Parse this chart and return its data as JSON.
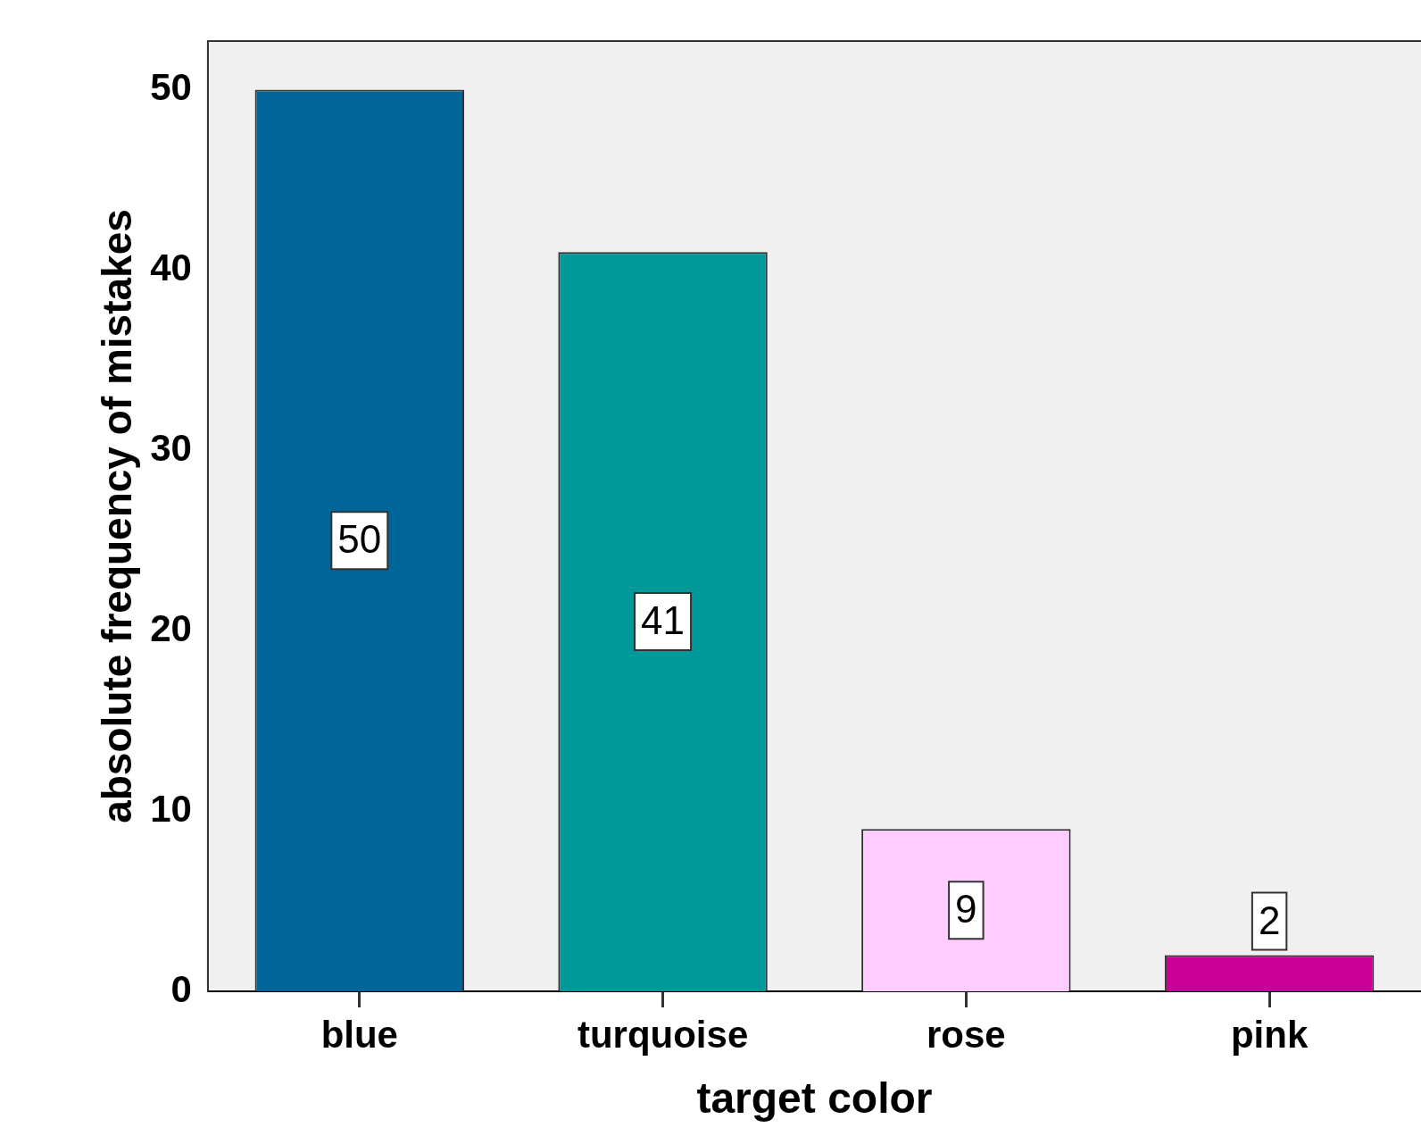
{
  "chart_data": {
    "type": "bar",
    "xlabel": "target color",
    "ylabel": "absolute frequency of mistakes",
    "categories": [
      "blue",
      "turquoise",
      "rose",
      "pink"
    ],
    "values": [
      50,
      41,
      9,
      2
    ],
    "colors": [
      "#006699",
      "#009999",
      "#ffccff",
      "#cc0099"
    ],
    "ylim": [
      0,
      52.7
    ],
    "yticks": [
      0,
      10,
      20,
      30,
      40,
      50
    ],
    "grid": false,
    "legend": false,
    "data_labels": true
  }
}
